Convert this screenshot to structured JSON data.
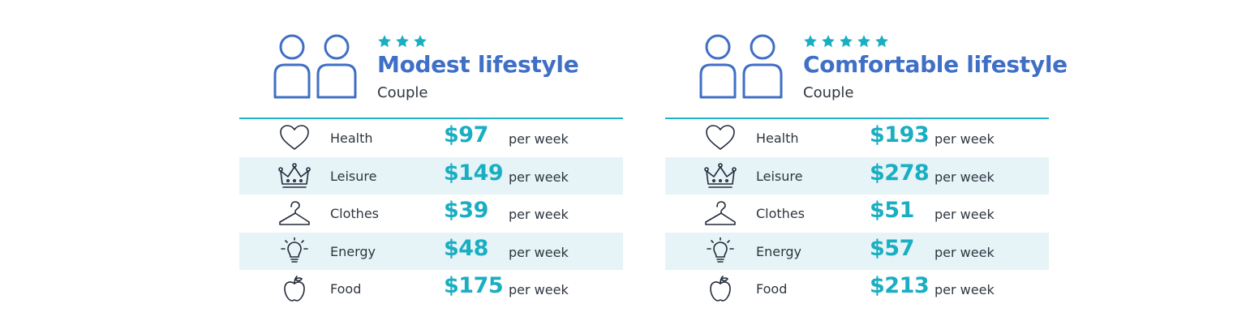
{
  "colors": {
    "title": "#3f6fc6",
    "amount": "#19aec2",
    "stripe": "#e6f3f7",
    "divider": "#1fb2c8"
  },
  "panels": [
    {
      "stars": 3,
      "title": "Modest lifestyle",
      "subtitle": "Couple",
      "rows": [
        {
          "icon": "heart-icon",
          "label": "Health",
          "amount": "$97",
          "unit": "per week"
        },
        {
          "icon": "crown-icon",
          "label": "Leisure",
          "amount": "$149",
          "unit": "per week"
        },
        {
          "icon": "hanger-icon",
          "label": "Clothes",
          "amount": "$39",
          "unit": "per week"
        },
        {
          "icon": "lightbulb-icon",
          "label": "Energy",
          "amount": "$48",
          "unit": "per week"
        },
        {
          "icon": "apple-icon",
          "label": "Food",
          "amount": "$175",
          "unit": "per week"
        }
      ]
    },
    {
      "stars": 5,
      "title": "Comfortable lifestyle",
      "subtitle": "Couple",
      "rows": [
        {
          "icon": "heart-icon",
          "label": "Health",
          "amount": "$193",
          "unit": "per week"
        },
        {
          "icon": "crown-icon",
          "label": "Leisure",
          "amount": "$278",
          "unit": "per week"
        },
        {
          "icon": "hanger-icon",
          "label": "Clothes",
          "amount": "$51",
          "unit": "per week"
        },
        {
          "icon": "lightbulb-icon",
          "label": "Energy",
          "amount": "$57",
          "unit": "per week"
        },
        {
          "icon": "apple-icon",
          "label": "Food",
          "amount": "$213",
          "unit": "per week"
        }
      ]
    }
  ]
}
